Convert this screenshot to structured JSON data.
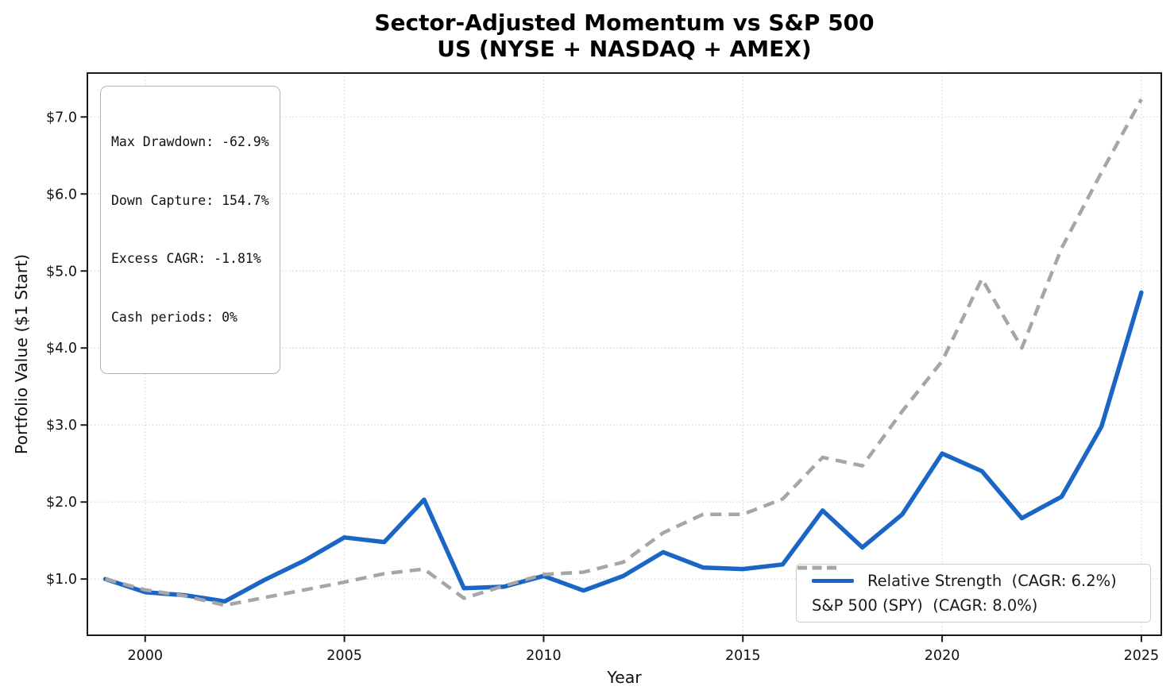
{
  "title": {
    "line1": "Sector-Adjusted Momentum vs S&P 500",
    "line2": "US (NYSE + NASDAQ + AMEX)"
  },
  "stats_box": {
    "lines": [
      "Max Drawdown: -62.9%",
      "Down Capture: 154.7%",
      "Excess CAGR: -1.81%",
      "Cash periods: 0%"
    ]
  },
  "axes": {
    "x_label": "Year",
    "y_label": "Portfolio Value ($1 Start)"
  },
  "legend": {
    "items": [
      {
        "label": "Relative Strength  (CAGR: 6.2%)",
        "color": "#1b66c5",
        "style": "solid"
      },
      {
        "label": "S&P 500 (SPY)  (CAGR: 8.0%)",
        "color": "#a6a6a6",
        "style": "dashed"
      }
    ]
  },
  "chart_data": {
    "type": "line",
    "title": "Sector-Adjusted Momentum vs S&P 500\nUS (NYSE + NASDAQ + AMEX)",
    "xlabel": "Year",
    "ylabel": "Portfolio Value ($1 Start)",
    "x": [
      1999,
      2000,
      2001,
      2002,
      2003,
      2004,
      2005,
      2006,
      2007,
      2008,
      2009,
      2010,
      2011,
      2012,
      2013,
      2014,
      2015,
      2016,
      2017,
      2018,
      2019,
      2020,
      2021,
      2022,
      2023,
      2024,
      2025
    ],
    "series": [
      {
        "name": "Relative Strength",
        "cagr": "6.2%",
        "color": "#1b66c5",
        "style": "solid",
        "values": [
          1.0,
          0.83,
          0.79,
          0.71,
          0.99,
          1.24,
          1.54,
          1.48,
          2.03,
          0.88,
          0.9,
          1.04,
          0.85,
          1.04,
          1.35,
          1.15,
          1.13,
          1.19,
          1.89,
          1.41,
          1.84,
          2.63,
          2.4,
          1.79,
          2.07,
          2.98,
          4.72
        ]
      },
      {
        "name": "S&P 500 (SPY)",
        "cagr": "8.0%",
        "color": "#a6a6a6",
        "style": "dashed",
        "values": [
          1.0,
          0.86,
          0.78,
          0.66,
          0.76,
          0.86,
          0.96,
          1.07,
          1.13,
          0.75,
          0.91,
          1.06,
          1.09,
          1.22,
          1.6,
          1.84,
          1.84,
          2.04,
          2.58,
          2.47,
          3.18,
          3.83,
          4.9,
          4.0,
          5.3,
          6.28,
          7.23
        ]
      }
    ],
    "xticks": {
      "values": [
        2000,
        2005,
        2010,
        2015,
        2020,
        2025
      ],
      "labels": [
        "2000",
        "2005",
        "2010",
        "2015",
        "2020",
        "2025"
      ]
    },
    "yticks": {
      "values": [
        1,
        2,
        3,
        4,
        5,
        6,
        7
      ],
      "labels": [
        "$1.0",
        "$2.0",
        "$3.0",
        "$4.0",
        "$5.0",
        "$6.0",
        "$7.0"
      ]
    },
    "xlim": [
      1998.55,
      2025.5
    ],
    "ylim": [
      0.27,
      7.57
    ],
    "grid": true,
    "grid_color": "#dcdcdc",
    "frame_color": "#1a1a1a",
    "legend_position": "lower right"
  }
}
